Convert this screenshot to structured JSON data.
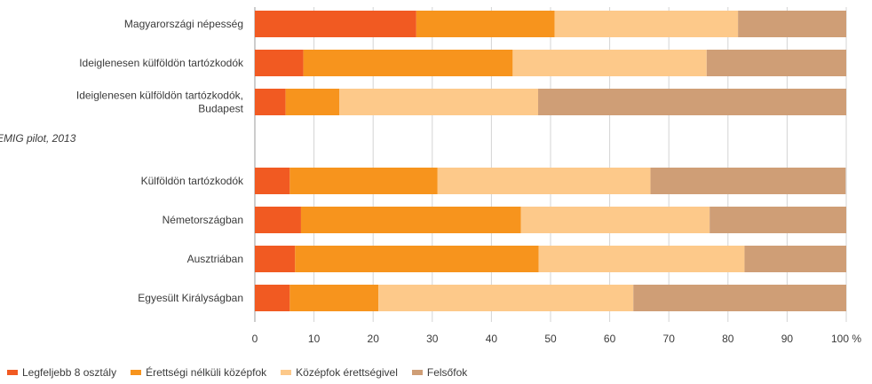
{
  "chart_data": {
    "type": "bar",
    "orientation": "horizontal",
    "stacked": true,
    "title": "",
    "note": "EMIG pilot, 2013",
    "xlim": [
      0,
      100
    ],
    "xticks": [
      "0",
      "10",
      "20",
      "30",
      "40",
      "50",
      "60",
      "70",
      "80",
      "90",
      "100 %"
    ],
    "grid": true,
    "legend_position": "bottom",
    "groups": [
      {
        "categories": [
          [
            "Magyarországi népesség"
          ],
          [
            "Ideiglenesen külföldön tartózkodók"
          ],
          [
            "Ideiglenesen külföldön tartózkodók,",
            "Budapest"
          ]
        ]
      },
      {
        "categories": [
          [
            "Külföldön tartózkodók"
          ],
          [
            "Németországban"
          ],
          [
            "Ausztriában"
          ],
          [
            "Egyesült Királyságban"
          ]
        ]
      }
    ],
    "series": [
      {
        "name": "Legfeljebb 8 osztály",
        "color": "#f15a22",
        "values": [
          27.3,
          8.2,
          5.2,
          5.9,
          7.8,
          6.8,
          5.9
        ]
      },
      {
        "name": "Érettségi nélküli középfok",
        "color": "#f7941d",
        "values": [
          23.4,
          35.4,
          9.1,
          25.0,
          37.2,
          41.2,
          15.0
        ]
      },
      {
        "name": "Középfok érettségivel",
        "color": "#fdc98a",
        "values": [
          31.0,
          32.8,
          33.6,
          36.0,
          31.9,
          34.8,
          43.1
        ]
      },
      {
        "name": "Felsőfok",
        "color": "#cf9e76",
        "values": [
          18.3,
          23.6,
          52.1,
          33.0,
          23.1,
          17.2,
          36.0
        ]
      }
    ]
  }
}
